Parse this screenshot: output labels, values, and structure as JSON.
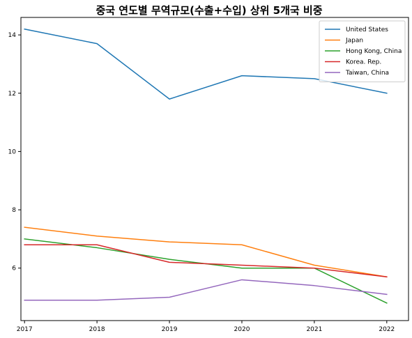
{
  "chart_data": {
    "type": "line",
    "title": "중국 연도별 무역규모(수출+수입) 상위 5개국 비중",
    "xlabel": "",
    "ylabel": "",
    "x": [
      2017,
      2018,
      2019,
      2020,
      2021,
      2022
    ],
    "x_tick_labels": [
      "2017",
      "2018",
      "2019",
      "2020",
      "2021",
      "2022"
    ],
    "y_ticks": [
      6,
      8,
      10,
      12,
      14
    ],
    "y_tick_labels": [
      "6",
      "8",
      "10",
      "12",
      "14"
    ],
    "xlim": [
      2016.95,
      2022.3
    ],
    "ylim": [
      4.2,
      14.6
    ],
    "grid": false,
    "legend_position": "top-right",
    "series": [
      {
        "name": "United States",
        "color": "#1f77b4",
        "values": [
          14.2,
          13.7,
          11.8,
          12.6,
          12.5,
          12.0
        ]
      },
      {
        "name": "Japan",
        "color": "#ff7f0e",
        "values": [
          7.4,
          7.1,
          6.9,
          6.8,
          6.1,
          5.7
        ]
      },
      {
        "name": "Hong Kong, China",
        "color": "#2ca02c",
        "values": [
          7.0,
          6.7,
          6.3,
          6.0,
          6.0,
          4.8
        ]
      },
      {
        "name": "Korea. Rep.",
        "color": "#d62728",
        "values": [
          6.8,
          6.8,
          6.2,
          6.1,
          6.0,
          5.7
        ]
      },
      {
        "name": "Taiwan, China",
        "color": "#9467bd",
        "values": [
          4.9,
          4.9,
          5.0,
          5.6,
          5.4,
          5.1
        ]
      }
    ]
  }
}
